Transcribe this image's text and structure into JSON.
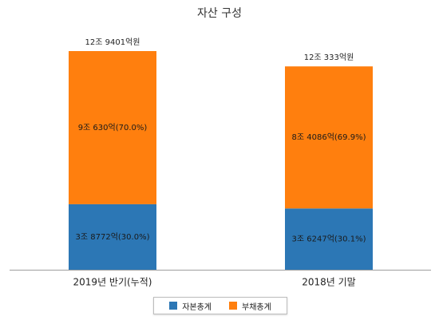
{
  "chart_data": {
    "type": "bar",
    "stacked": true,
    "title": "자산 구성",
    "categories": [
      "2019년 반기(누적)",
      "2018년 기말"
    ],
    "series": [
      {
        "name": "자본총계",
        "color": "#2c77b5",
        "values": [
          38772,
          36247
        ],
        "data_labels": [
          "3조 8772억(30.0%)",
          "3조 6247억(30.1%)"
        ]
      },
      {
        "name": "부채총계",
        "color": "#ff7f0e",
        "values": [
          90630,
          84086
        ],
        "data_labels": [
          "9조 630억(70.0%)",
          "8조 4086억(69.9%)"
        ]
      }
    ],
    "totals": [
      129401,
      120333
    ],
    "total_labels": [
      "12조 9401억원",
      "12조 333억원"
    ],
    "value_unit": "억원",
    "legend_position": "bottom",
    "grid": false
  }
}
